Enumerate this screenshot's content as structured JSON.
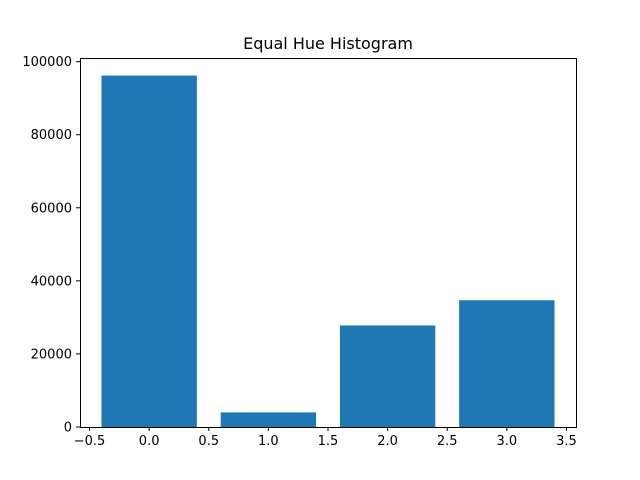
{
  "chart_data": {
    "type": "bar",
    "title": "Equal Hue Histogram",
    "xlabel": "",
    "ylabel": "",
    "x": [
      0,
      1,
      2,
      3
    ],
    "values": [
      96200,
      4000,
      27800,
      34700
    ],
    "bar_width": 0.8,
    "xlim": [
      -0.58,
      3.58
    ],
    "ylim": [
      0,
      101000
    ],
    "xticks": [
      -0.5,
      0.0,
      0.5,
      1.0,
      1.5,
      2.0,
      2.5,
      3.0,
      3.5
    ],
    "xtick_labels": [
      "−0.5",
      "0.0",
      "0.5",
      "1.0",
      "1.5",
      "2.0",
      "2.5",
      "3.0",
      "3.5"
    ],
    "yticks": [
      0,
      20000,
      40000,
      60000,
      80000,
      100000
    ],
    "ytick_labels": [
      "0",
      "20000",
      "40000",
      "60000",
      "80000",
      "100000"
    ],
    "grid": false,
    "bar_color": "#1f77b4"
  }
}
